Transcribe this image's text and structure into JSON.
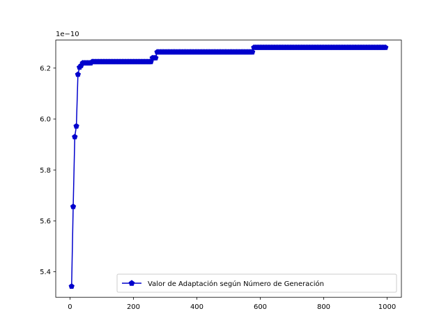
{
  "chart_data": {
    "type": "line",
    "title": "",
    "xlabel": "",
    "ylabel": "",
    "xlim": [
      -45,
      1045
    ],
    "ylim": [
      5.3,
      6.31
    ],
    "y_offset_label": "1e−10",
    "xticks": [
      0,
      200,
      400,
      600,
      800,
      1000
    ],
    "xtick_labels": [
      "0",
      "200",
      "400",
      "600",
      "800",
      "1000"
    ],
    "yticks": [
      5.4,
      5.6,
      5.8,
      6.0,
      6.2
    ],
    "ytick_labels": [
      "5.4",
      "5.6",
      "5.8",
      "6.0",
      "6.2"
    ],
    "grid": false,
    "legend_position": "lower right",
    "marker": "pentagon",
    "sampling_step": 5,
    "series": [
      {
        "name": "Valor de Adaptación según Número de Generación",
        "color": "#0000cc",
        "steps": [
          {
            "from": 5,
            "to": 5,
            "y": 5.343
          },
          {
            "from": 10,
            "to": 10,
            "y": 5.656
          },
          {
            "from": 15,
            "to": 15,
            "y": 5.93
          },
          {
            "from": 20,
            "to": 20,
            "y": 5.972
          },
          {
            "from": 25,
            "to": 25,
            "y": 6.175
          },
          {
            "from": 30,
            "to": 30,
            "y": 6.203
          },
          {
            "from": 35,
            "to": 35,
            "y": 6.21
          },
          {
            "from": 40,
            "to": 65,
            "y": 6.22
          },
          {
            "from": 70,
            "to": 255,
            "y": 6.225
          },
          {
            "from": 260,
            "to": 270,
            "y": 6.24
          },
          {
            "from": 275,
            "to": 575,
            "y": 6.263
          },
          {
            "from": 580,
            "to": 995,
            "y": 6.281
          }
        ]
      }
    ]
  }
}
